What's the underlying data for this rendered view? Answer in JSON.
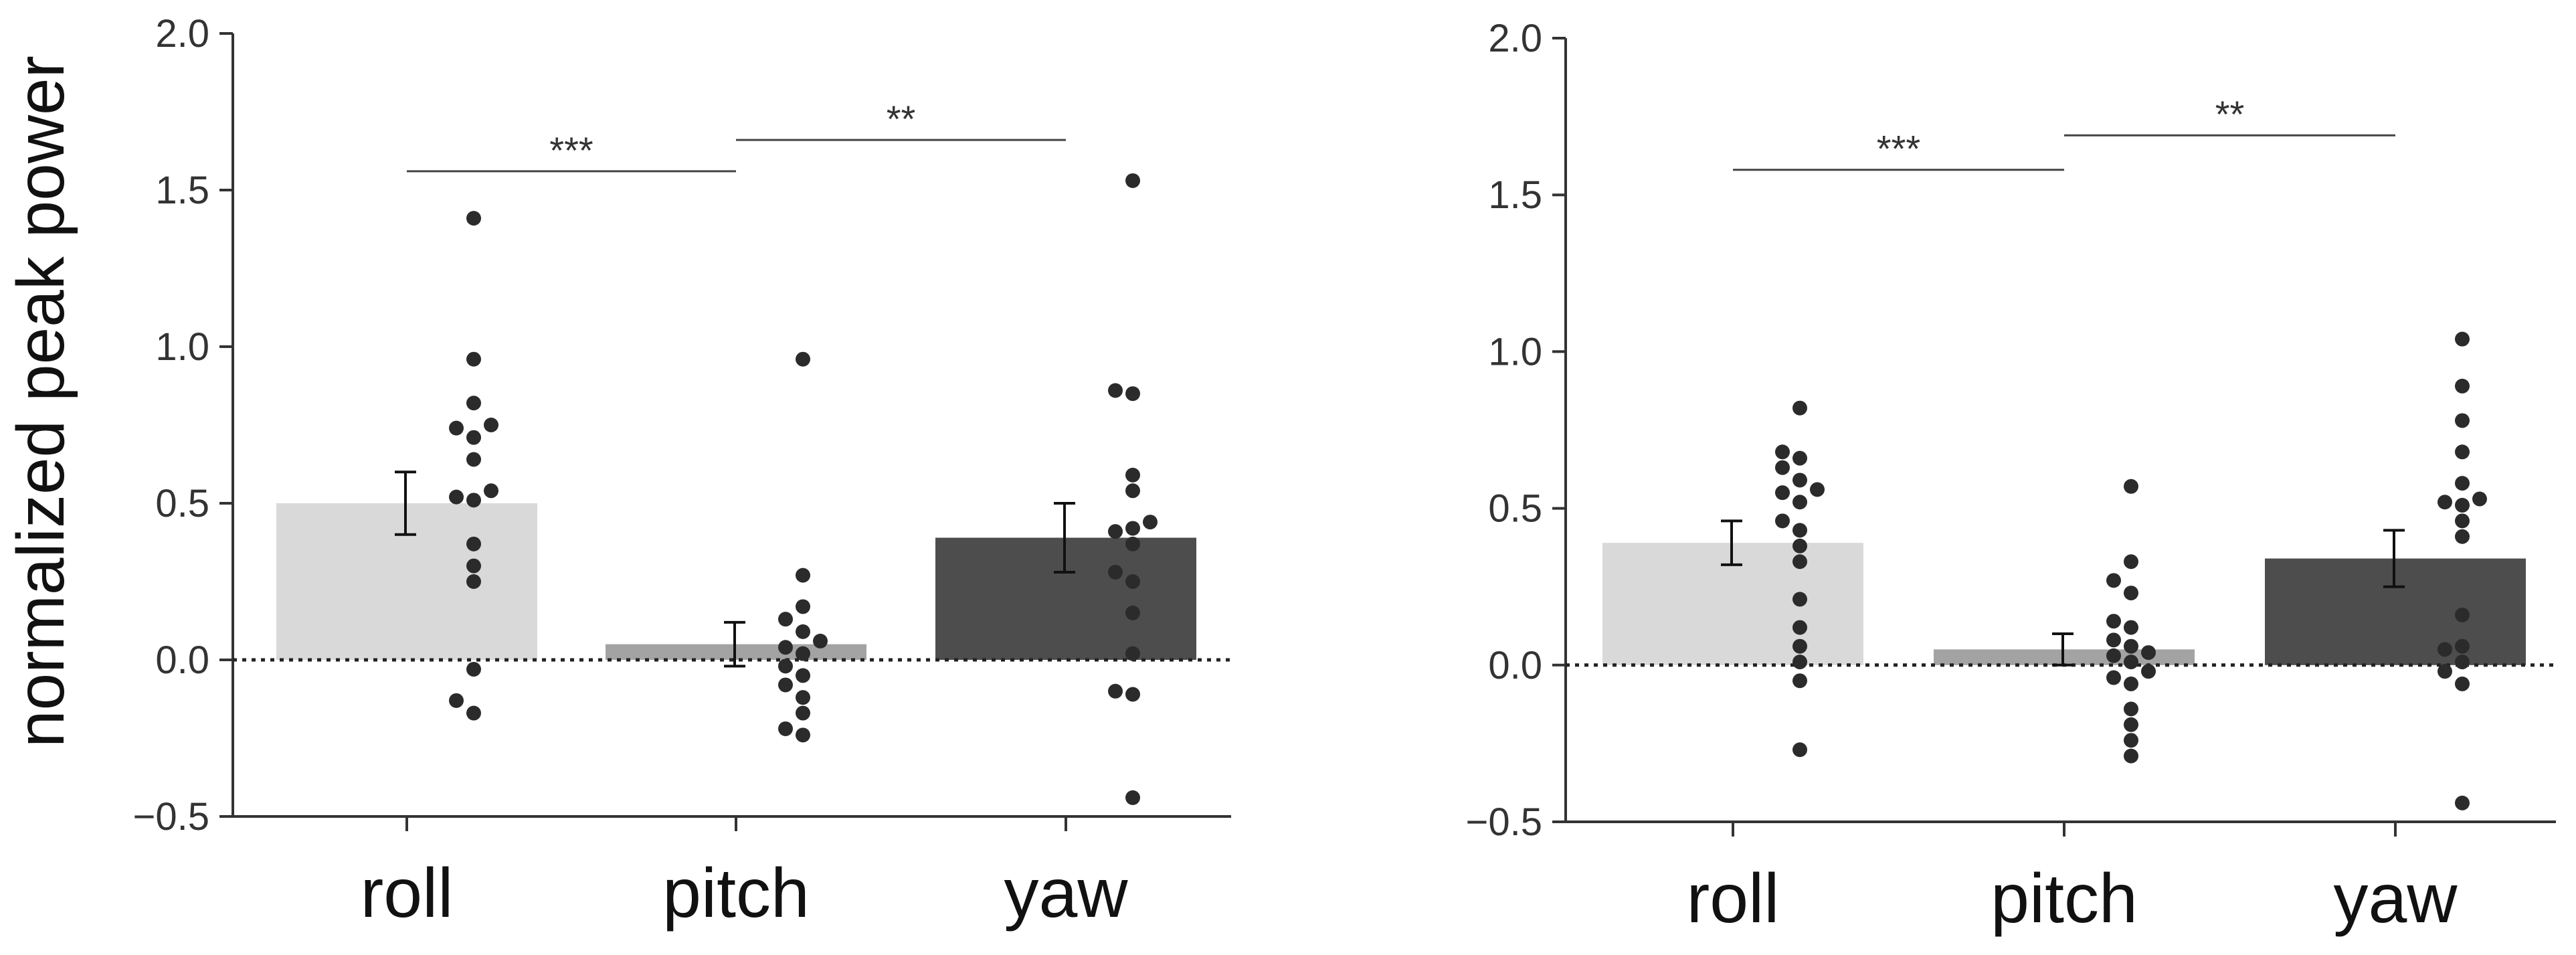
{
  "chart_data": [
    {
      "type": "bar",
      "title": "",
      "xlabel": "",
      "ylabel": "normalized peak power",
      "ylim": [
        -0.5,
        2.0
      ],
      "yticks": [
        "2.0",
        "1.5",
        "1.0",
        "0.5",
        "0.0",
        "−0.5"
      ],
      "ytick_values": [
        2.0,
        1.5,
        1.0,
        0.5,
        0.0,
        -0.5
      ],
      "grid": false,
      "categories": [
        "roll",
        "pitch",
        "yaw"
      ],
      "values": [
        0.5,
        0.05,
        0.39
      ],
      "errors": [
        0.1,
        0.07,
        0.11
      ],
      "bar_colors": [
        "#d9d9d9",
        "#a3a3a3",
        "#4d4d4d"
      ],
      "points": [
        [
          1.41,
          0.96,
          0.82,
          0.75,
          0.74,
          0.71,
          0.64,
          0.54,
          0.51,
          0.52,
          0.37,
          0.3,
          0.25,
          -0.03,
          -0.13,
          -0.17
        ],
        [
          0.96,
          0.27,
          0.17,
          0.13,
          0.09,
          0.06,
          0.04,
          0.02,
          -0.02,
          -0.05,
          -0.08,
          -0.12,
          -0.17,
          -0.22,
          -0.24
        ],
        [
          1.53,
          0.86,
          0.85,
          0.59,
          0.54,
          0.44,
          0.42,
          0.41,
          0.37,
          0.28,
          0.25,
          0.15,
          0.02,
          -0.1,
          -0.11,
          -0.44
        ]
      ],
      "significance": [
        {
          "from": 0,
          "to": 1,
          "label": "***",
          "y": 1.56
        },
        {
          "from": 1,
          "to": 2,
          "label": "**",
          "y": 1.66
        }
      ]
    },
    {
      "type": "bar",
      "title": "",
      "xlabel": "",
      "ylabel": "",
      "ylim": [
        -0.5,
        2.0
      ],
      "yticks": [
        "2.0",
        "1.5",
        "1.0",
        "0.5",
        "0.0",
        "−0.5"
      ],
      "ytick_values": [
        2.0,
        1.5,
        1.0,
        0.5,
        0.0,
        -0.5
      ],
      "grid": false,
      "categories": [
        "roll",
        "pitch",
        "yaw"
      ],
      "values": [
        0.39,
        0.05,
        0.34
      ],
      "errors": [
        0.07,
        0.05,
        0.09
      ],
      "bar_colors": [
        "#d9d9d9",
        "#a3a3a3",
        "#4d4d4d"
      ],
      "points": [
        [
          0.82,
          0.68,
          0.66,
          0.63,
          0.59,
          0.56,
          0.55,
          0.52,
          0.46,
          0.43,
          0.38,
          0.33,
          0.21,
          0.12,
          0.06,
          0.01,
          -0.05,
          -0.27
        ],
        [
          0.57,
          0.33,
          0.27,
          0.23,
          0.14,
          0.12,
          0.08,
          0.06,
          0.04,
          0.03,
          0.01,
          -0.02,
          -0.04,
          -0.06,
          -0.14,
          -0.19,
          -0.24,
          -0.29
        ],
        [
          1.04,
          0.89,
          0.78,
          0.68,
          0.58,
          0.53,
          0.52,
          0.51,
          0.46,
          0.41,
          0.16,
          0.06,
          0.05,
          0.01,
          -0.02,
          -0.06,
          -0.44
        ]
      ],
      "significance": [
        {
          "from": 0,
          "to": 1,
          "label": "***",
          "y": 1.58
        },
        {
          "from": 1,
          "to": 2,
          "label": "**",
          "y": 1.69
        }
      ]
    }
  ]
}
